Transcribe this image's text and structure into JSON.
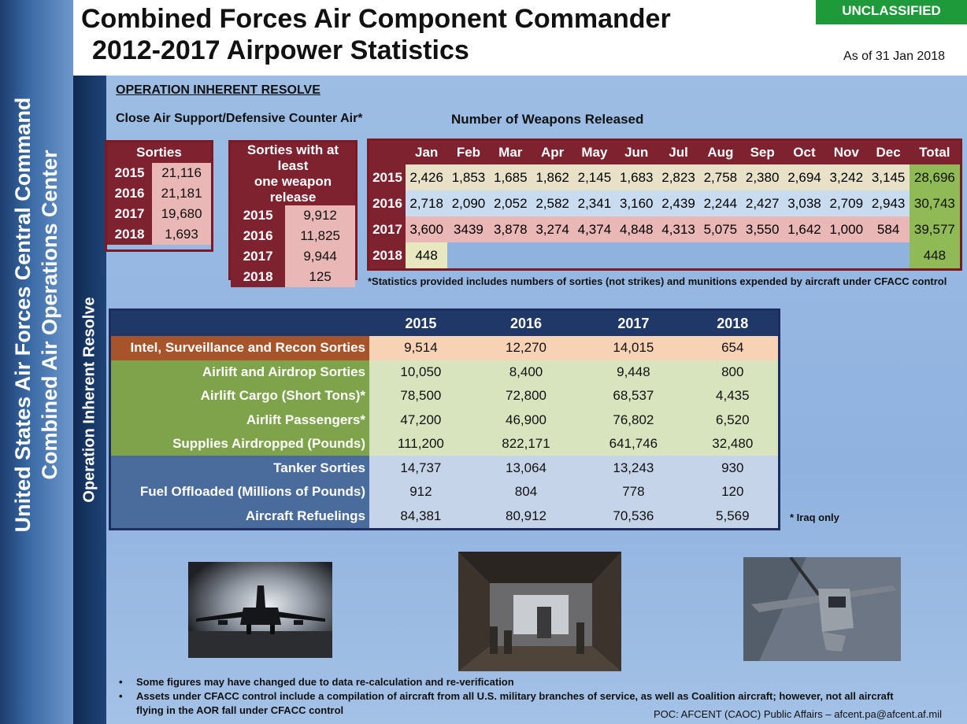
{
  "sidebar": {
    "outer_line1": "United States Air Forces Central Command",
    "outer_line2": "Combined Air Operations Center",
    "inner": "Operation Inherent Resolve"
  },
  "header": {
    "title_line1": "Combined Forces Air Component Commander",
    "title_line2": "2012-2017 Airpower Statistics",
    "classification": "UNCLASSIFIED",
    "as_of": "As of 31 Jan 2018"
  },
  "section": {
    "operation": "OPERATION INHERENT RESOLVE",
    "cas_label": "Close Air Support/Defensive Counter Air*",
    "weapons_label": "Number of Weapons Released"
  },
  "sorties": {
    "header": "Sorties",
    "rows": [
      {
        "year": "2015",
        "value": "21,116"
      },
      {
        "year": "2016",
        "value": "21,181"
      },
      {
        "year": "2017",
        "value": "19,680"
      },
      {
        "year": "2018",
        "value": "1,693"
      }
    ]
  },
  "sorties_weapon": {
    "header_line1": "Sorties with at least",
    "header_line2": "one weapon release",
    "rows": [
      {
        "year": "2015",
        "value": "9,912"
      },
      {
        "year": "2016",
        "value": "11,825"
      },
      {
        "year": "2017",
        "value": "9,944"
      },
      {
        "year": "2018",
        "value": "125"
      }
    ]
  },
  "weapons": {
    "months": [
      "Jan",
      "Feb",
      "Mar",
      "Apr",
      "May",
      "Jun",
      "Jul",
      "Aug",
      "Sep",
      "Oct",
      "Nov",
      "Dec",
      "Total"
    ],
    "rows": [
      {
        "year": "2015",
        "values": [
          "2,426",
          "1,853",
          "1,685",
          "1,862",
          "2,145",
          "1,683",
          "2,823",
          "2,758",
          "2,380",
          "2,694",
          "3,242",
          "3,145"
        ],
        "total": "28,696"
      },
      {
        "year": "2016",
        "values": [
          "2,718",
          "2,090",
          "2,052",
          "2,582",
          "2,341",
          "3,160",
          "2,439",
          "2,244",
          "2,427",
          "3,038",
          "2,709",
          "2,943"
        ],
        "total": "30,743"
      },
      {
        "year": "2017",
        "values": [
          "3,600",
          "3439",
          "3,878",
          "3,274",
          "4,374",
          "4,848",
          "4,313",
          "5,075",
          "3,550",
          "1,642",
          "1,000",
          "584"
        ],
        "total": "39,577"
      },
      {
        "year": "2018",
        "values": [
          "448"
        ],
        "total": "448"
      }
    ]
  },
  "footnote": "*Statistics provided includes numbers of sorties (not strikes) and munitions expended by aircraft under CFACC control",
  "stats": {
    "years": [
      "2015",
      "2016",
      "2017",
      "2018"
    ],
    "isr": [
      {
        "label": "Intel, Surveillance and Recon Sorties",
        "values": [
          "9,514",
          "12,270",
          "14,015",
          "654"
        ]
      }
    ],
    "airlift": [
      {
        "label": "Airlift and Airdrop Sorties",
        "values": [
          "10,050",
          "8,400",
          "9,448",
          "800"
        ]
      },
      {
        "label": "Airlift Cargo (Short Tons)*",
        "values": [
          "78,500",
          "72,800",
          "68,537",
          "4,435"
        ]
      },
      {
        "label": "Airlift Passengers*",
        "values": [
          "47,200",
          "46,900",
          "76,802",
          "6,520"
        ]
      },
      {
        "label": "Supplies Airdropped (Pounds)",
        "values": [
          "111,200",
          "822,171",
          "641,746",
          "32,480"
        ]
      }
    ],
    "tanker": [
      {
        "label": "Tanker Sorties",
        "values": [
          "14,737",
          "13,064",
          "13,243",
          "930"
        ]
      },
      {
        "label": "Fuel Offloaded (Millions of Pounds)",
        "values": [
          "912",
          "804",
          "778",
          "120"
        ]
      },
      {
        "label": "Aircraft Refuelings",
        "values": [
          "84,381",
          "80,912",
          "70,536",
          "5,569"
        ]
      }
    ]
  },
  "iraq_note": "* Iraq only",
  "bullets": [
    "Some figures may have changed due to data re-calculation and re-verification",
    "Assets under CFACC control include a compilation of aircraft from all U.S.  military branches of service, as well as Coalition aircraft; however, not all aircraft flying in the AOR fall under CFACC control"
  ],
  "bullet_symbol": "•",
  "poc": "POC:  AFCENT (CAOC) Public Affairs – afcent.pa@afcent.af.mil"
}
